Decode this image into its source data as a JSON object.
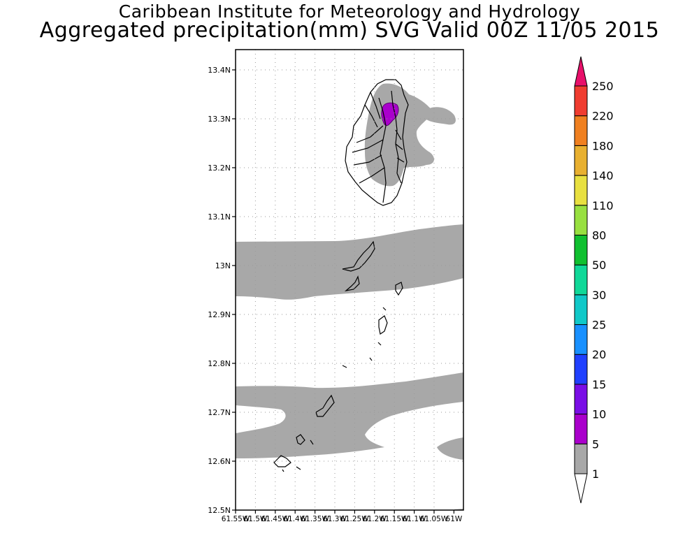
{
  "header": {
    "title": "Caribbean Institute for Meteorology and Hydrology",
    "subtitle": "Aggregated precipitation(mm) SVG Valid 00Z 11/05 2015"
  },
  "map": {
    "lat_labels": [
      "13.4N",
      "13.3N",
      "13.2N",
      "13.1N",
      "13N",
      "12.9N",
      "12.8N",
      "12.7N",
      "12.6N",
      "12.5N"
    ],
    "lon_labels": [
      "61.55W",
      "61.5W",
      "61.45W",
      "61.4W",
      "61.35W",
      "61.3W",
      "61.25W",
      "61.2W",
      "61.15W",
      "61.1W",
      "61.05W",
      "61W"
    ]
  },
  "colorbar": {
    "levels": [
      "1",
      "5",
      "10",
      "15",
      "20",
      "25",
      "30",
      "50",
      "80",
      "110",
      "140",
      "180",
      "220",
      "250"
    ],
    "colors": [
      "#a8a8a8",
      "#aa00cc",
      "#7a0ee6",
      "#2040ff",
      "#1890ff",
      "#10c8c8",
      "#10d898",
      "#10c030",
      "#98e040",
      "#e8e040",
      "#e8b030",
      "#f08020",
      "#f03c30"
    ],
    "top_arrow_color": "#e8106a"
  }
}
